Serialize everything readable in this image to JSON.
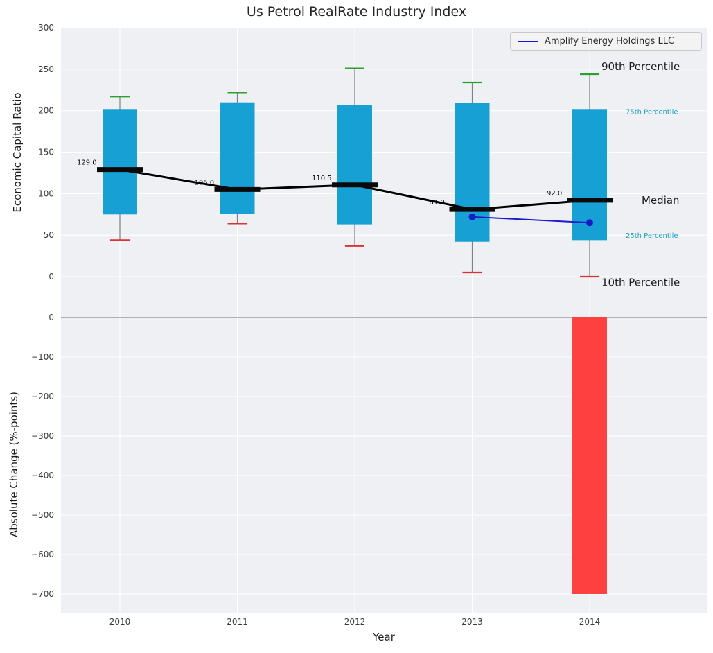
{
  "title": "Us Petrol RealRate Industry Index",
  "axes": {
    "top_ylabel": "Economic Capital Ratio",
    "bottom_ylabel": "Absolute Change (%-points)",
    "xlabel": "Year"
  },
  "legend": {
    "label": "Amplify Energy Holdings LLC"
  },
  "colors": {
    "plot_bg": "#eef0f3",
    "grid": "#ffffff",
    "box_fill": "#17a0d3",
    "p90_cap": "#2ca02c",
    "p10_cap": "#e03131",
    "whisker": "#808080",
    "median": "#0a0a0a",
    "company_line": "#1a1acd",
    "bar_negative": "#ff4040",
    "zero_line": "#9a9a9a",
    "tick_label": "#3c3c3c"
  },
  "chart_data": [
    {
      "type": "boxplot",
      "title": "Us Petrol RealRate Industry Index",
      "ylabel": "Economic Capital Ratio",
      "ylim": [
        0,
        300
      ],
      "yticks": [
        0,
        50,
        100,
        150,
        200,
        250,
        300
      ],
      "grid": true,
      "legend_position": "upper right",
      "categories": [
        "2010",
        "2011",
        "2012",
        "2013",
        "2014"
      ],
      "boxes": [
        {
          "year": "2010",
          "p10": 44,
          "p25": 75,
          "median": 129.0,
          "p75": 202,
          "p90": 217
        },
        {
          "year": "2011",
          "p10": 64,
          "p25": 76,
          "median": 105.0,
          "p75": 210,
          "p90": 222
        },
        {
          "year": "2012",
          "p10": 37,
          "p25": 63,
          "median": 110.5,
          "p75": 207,
          "p90": 251
        },
        {
          "year": "2013",
          "p10": 5,
          "p25": 42,
          "median": 81.0,
          "p75": 209,
          "p90": 234
        },
        {
          "year": "2014",
          "p10": 0,
          "p25": 44,
          "median": 92.0,
          "p75": 202,
          "p90": 244
        }
      ],
      "median_labels": [
        "129.0",
        "105.0",
        "110.5",
        "81.0",
        "92.0"
      ],
      "company_series": {
        "name": "Amplify Energy Holdings LLC",
        "x": [
          "2013",
          "2014"
        ],
        "values": [
          72,
          65
        ]
      },
      "annotations": [
        {
          "text": "90th Percentile",
          "value": 253,
          "color": "#1a1a1a",
          "size": 15
        },
        {
          "text": "75th Percentile",
          "value": 200,
          "color": "#1a9fc4",
          "size": 10
        },
        {
          "text": "Median",
          "value": 92,
          "color": "#1a1a1a",
          "size": 15
        },
        {
          "text": "25th Percentile",
          "value": 51,
          "color": "#1a9fc4",
          "size": 10
        },
        {
          "text": "10th Percentile",
          "value": -7,
          "color": "#1a1a1a",
          "size": 15
        }
      ]
    },
    {
      "type": "bar",
      "xlabel": "Year",
      "ylabel": "Absolute Change (%-points)",
      "ylim": [
        -700,
        0
      ],
      "yticks": [
        0,
        -100,
        -200,
        -300,
        -400,
        -500,
        -600,
        -700
      ],
      "grid": true,
      "categories": [
        "2010",
        "2011",
        "2012",
        "2013",
        "2014"
      ],
      "values": [
        0,
        0,
        0,
        0,
        -700
      ],
      "bar_color": "#ff4040"
    }
  ]
}
